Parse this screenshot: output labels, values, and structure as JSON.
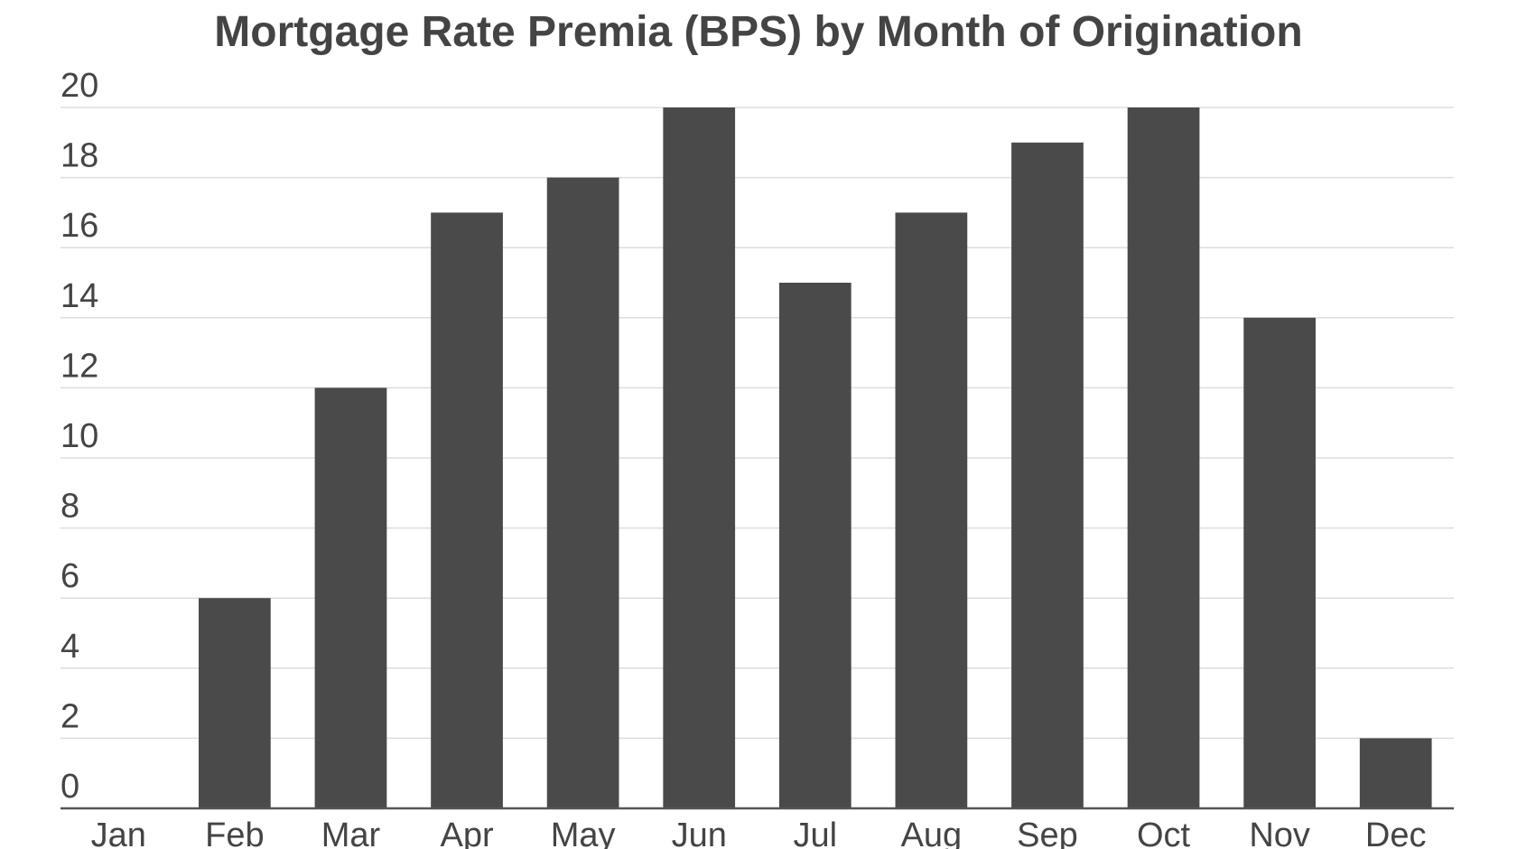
{
  "chart_data": {
    "type": "bar",
    "title": "Mortgage Rate Premia (BPS) by Month of Origination",
    "xlabel": "",
    "ylabel": "",
    "categories": [
      "Jan",
      "Feb",
      "Mar",
      "Apr",
      "May",
      "Jun",
      "Jul",
      "Aug",
      "Sep",
      "Oct",
      "Nov",
      "Dec"
    ],
    "values": [
      0,
      6,
      12,
      17,
      18,
      20,
      15,
      17,
      19,
      20,
      14,
      2
    ],
    "ylim": [
      0,
      20
    ],
    "yticks": [
      "0",
      "2",
      "4",
      "6",
      "8",
      "10",
      "12",
      "14",
      "16",
      "18",
      "20"
    ],
    "grid": true,
    "legend": "none",
    "colors": {
      "bar": "#4a4a4a",
      "grid": "#dddddd",
      "axis": "#555555",
      "text": "#444444"
    }
  }
}
